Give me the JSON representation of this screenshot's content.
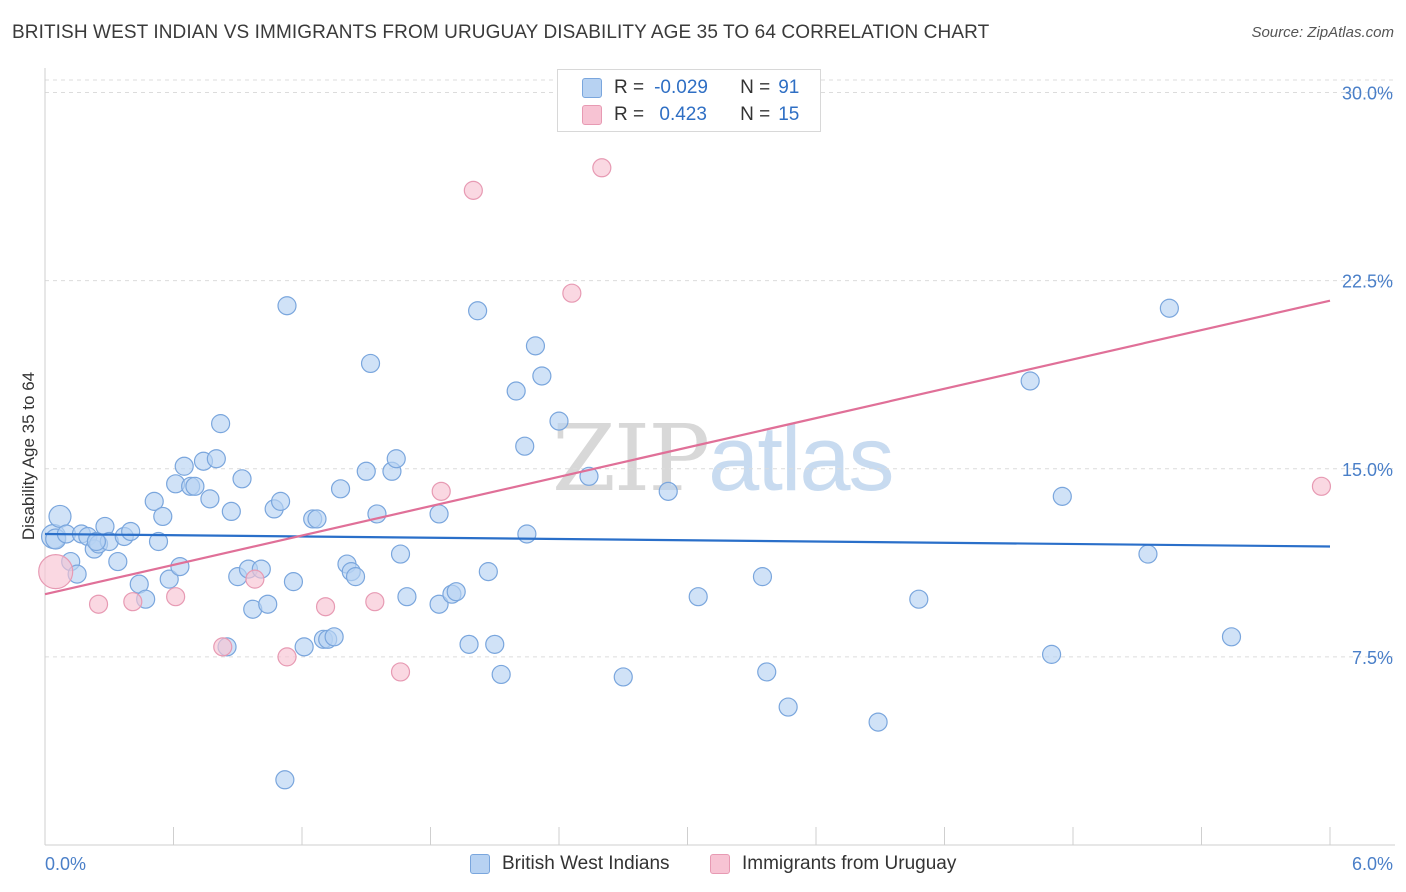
{
  "header": {
    "title": "BRITISH WEST INDIAN VS IMMIGRANTS FROM URUGUAY DISABILITY AGE 35 TO 64 CORRELATION CHART",
    "source": "Source: ZipAtlas.com"
  },
  "legend": {
    "r_label": "R =",
    "n_label": "N =",
    "series1": {
      "r": "-0.029",
      "n": "91"
    },
    "series2": {
      "r": " 0.423",
      "n": "15"
    }
  },
  "bottom_legend": {
    "series1": "British West Indians",
    "series2": "Immigrants from Uruguay"
  },
  "watermark": {
    "zip": "ZIP",
    "atlas": "atlas"
  },
  "colors": {
    "blue_fill": "#b7d2f2",
    "blue_stroke": "#7aa6dd",
    "blue_line": "#2a6fc9",
    "pink_fill": "#f7c3d3",
    "pink_stroke": "#e79ab3",
    "pink_line": "#e07098",
    "axis_text": "#4a7fc8",
    "grid": "#dcdcdc"
  },
  "chart_data": {
    "type": "scatter",
    "title": "BRITISH WEST INDIAN VS IMMIGRANTS FROM URUGUAY DISABILITY AGE 35 TO 64 CORRELATION CHART",
    "xlabel": "",
    "ylabel": "Disability Age 35 to 64",
    "xlim": [
      0,
      6
    ],
    "ylim": [
      0,
      30.5
    ],
    "x_tick_labels": [
      "0.0%",
      "6.0%"
    ],
    "y_ticks": [
      7.5,
      15.0,
      22.5,
      30.0
    ],
    "y_tick_labels": [
      "7.5%",
      "15.0%",
      "22.5%",
      "30.0%"
    ],
    "series": [
      {
        "name": "British West Indians",
        "color": "#b7d2f2",
        "trend": {
          "x": [
            0,
            6
          ],
          "y": [
            12.4,
            11.9
          ]
        },
        "points": [
          [
            0.04,
            12.3,
            12
          ],
          [
            0.05,
            12.2,
            10
          ],
          [
            0.07,
            13.1,
            11
          ],
          [
            0.1,
            12.4,
            9
          ],
          [
            0.12,
            11.3,
            9
          ],
          [
            0.15,
            10.8,
            9
          ],
          [
            0.17,
            12.4,
            9
          ],
          [
            0.2,
            12.3,
            9
          ],
          [
            0.23,
            11.8,
            9
          ],
          [
            0.25,
            12.0,
            9
          ],
          [
            0.28,
            12.7,
            9
          ],
          [
            0.3,
            12.1,
            9
          ],
          [
            0.34,
            11.3,
            9
          ],
          [
            0.37,
            12.3,
            9
          ],
          [
            0.4,
            12.5,
            9
          ],
          [
            0.44,
            10.4,
            9
          ],
          [
            0.47,
            9.8,
            9
          ],
          [
            0.51,
            13.7,
            9
          ],
          [
            0.53,
            12.1,
            9
          ],
          [
            0.55,
            13.1,
            9
          ],
          [
            0.58,
            10.6,
            9
          ],
          [
            0.61,
            14.4,
            9
          ],
          [
            0.63,
            11.1,
            9
          ],
          [
            0.65,
            15.1,
            9
          ],
          [
            0.68,
            14.3,
            9
          ],
          [
            0.7,
            14.3,
            9
          ],
          [
            0.74,
            15.3,
            9
          ],
          [
            0.77,
            13.8,
            9
          ],
          [
            0.8,
            15.4,
            9
          ],
          [
            0.82,
            16.8,
            9
          ],
          [
            0.85,
            7.9,
            9
          ],
          [
            0.87,
            13.3,
            9
          ],
          [
            0.9,
            10.7,
            9
          ],
          [
            0.92,
            14.6,
            9
          ],
          [
            0.95,
            11.0,
            9
          ],
          [
            0.97,
            9.4,
            9
          ],
          [
            1.01,
            11.0,
            9
          ],
          [
            1.04,
            9.6,
            9
          ],
          [
            1.07,
            13.4,
            9
          ],
          [
            1.1,
            13.7,
            9
          ],
          [
            1.13,
            21.5,
            9
          ],
          [
            1.16,
            10.5,
            9
          ],
          [
            1.21,
            7.9,
            9
          ],
          [
            1.25,
            13.0,
            9
          ],
          [
            1.27,
            13.0,
            9
          ],
          [
            1.3,
            8.2,
            9
          ],
          [
            1.32,
            8.2,
            9
          ],
          [
            1.35,
            8.3,
            9
          ],
          [
            1.38,
            14.2,
            9
          ],
          [
            1.41,
            11.2,
            9
          ],
          [
            1.43,
            10.9,
            9
          ],
          [
            1.45,
            10.7,
            9
          ],
          [
            1.5,
            14.9,
            9
          ],
          [
            1.52,
            19.2,
            9
          ],
          [
            1.55,
            13.2,
            9
          ],
          [
            1.62,
            14.9,
            9
          ],
          [
            1.64,
            15.4,
            9
          ],
          [
            1.66,
            11.6,
            9
          ],
          [
            1.69,
            9.9,
            9
          ],
          [
            1.84,
            9.6,
            9
          ],
          [
            1.84,
            13.2,
            9
          ],
          [
            1.9,
            10.0,
            9
          ],
          [
            1.92,
            10.1,
            9
          ],
          [
            1.98,
            8.0,
            9
          ],
          [
            2.02,
            21.3,
            9
          ],
          [
            2.07,
            10.9,
            9
          ],
          [
            2.1,
            8.0,
            9
          ],
          [
            2.13,
            6.8,
            9
          ],
          [
            2.2,
            18.1,
            9
          ],
          [
            2.24,
            15.9,
            9
          ],
          [
            2.25,
            12.4,
            9
          ],
          [
            2.29,
            19.9,
            9
          ],
          [
            2.32,
            18.7,
            9
          ],
          [
            2.4,
            16.9,
            9
          ],
          [
            2.54,
            14.7,
            9
          ],
          [
            2.7,
            6.7,
            9
          ],
          [
            2.91,
            14.1,
            9
          ],
          [
            3.05,
            9.9,
            9
          ],
          [
            3.35,
            10.7,
            9
          ],
          [
            3.37,
            6.9,
            9
          ],
          [
            3.47,
            5.5,
            9
          ],
          [
            3.89,
            4.9,
            9
          ],
          [
            4.08,
            9.8,
            9
          ],
          [
            4.6,
            18.5,
            9
          ],
          [
            4.7,
            7.6,
            9
          ],
          [
            4.75,
            13.9,
            9
          ],
          [
            5.15,
            11.6,
            9
          ],
          [
            5.25,
            21.4,
            9
          ],
          [
            5.54,
            8.3,
            9
          ],
          [
            1.12,
            2.6,
            9
          ],
          [
            0.24,
            12.1,
            9
          ]
        ]
      },
      {
        "name": "Immigrants from Uruguay",
        "color": "#f7c3d3",
        "trend": {
          "x": [
            0,
            6
          ],
          "y": [
            10.0,
            21.7
          ]
        },
        "points": [
          [
            0.05,
            10.9,
            17
          ],
          [
            0.25,
            9.6,
            9
          ],
          [
            0.41,
            9.7,
            9
          ],
          [
            0.61,
            9.9,
            9
          ],
          [
            0.83,
            7.9,
            9
          ],
          [
            0.98,
            10.6,
            9
          ],
          [
            1.13,
            7.5,
            9
          ],
          [
            1.31,
            9.5,
            9
          ],
          [
            1.54,
            9.7,
            9
          ],
          [
            1.66,
            6.9,
            9
          ],
          [
            1.85,
            14.1,
            9
          ],
          [
            2.0,
            26.1,
            9
          ],
          [
            2.6,
            27.0,
            9
          ],
          [
            2.46,
            22.0,
            9
          ],
          [
            5.96,
            14.3,
            9
          ]
        ]
      }
    ]
  }
}
